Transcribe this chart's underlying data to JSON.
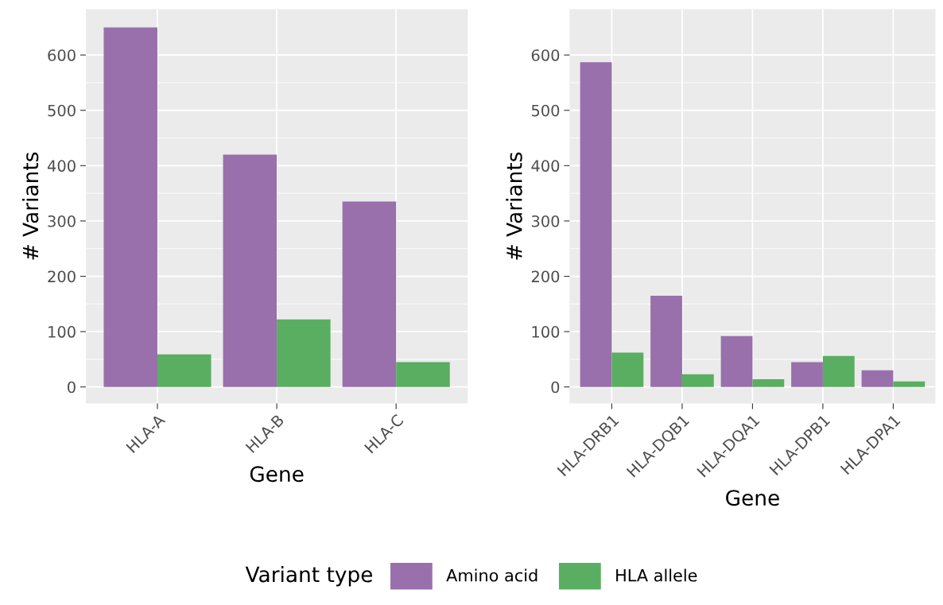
{
  "chart_data": [
    {
      "type": "bar",
      "xlabel": "Gene",
      "ylabel": "# Variants",
      "legend_title": "Variant type",
      "legend": "bottom",
      "grid": true,
      "categories": [
        "HLA-A",
        "HLA-B",
        "HLA-C"
      ],
      "series": [
        {
          "name": "Amino acid",
          "color": "#9970ab",
          "values": [
            650,
            420,
            335
          ]
        },
        {
          "name": "HLA allele",
          "color": "#5aae61",
          "values": [
            59,
            122,
            45
          ]
        }
      ],
      "ylim": [
        -30,
        683
      ],
      "yticks": [
        0,
        100,
        200,
        300,
        400,
        500,
        600
      ]
    },
    {
      "type": "bar",
      "xlabel": "Gene",
      "ylabel": "# Variants",
      "grid": true,
      "categories": [
        "HLA-DRB1",
        "HLA-DQB1",
        "HLA-DQA1",
        "HLA-DPB1",
        "HLA-DPA1"
      ],
      "series": [
        {
          "color": "#9970ab",
          "values": [
            587,
            165,
            92,
            45,
            30
          ]
        },
        {
          "color": "#5aae61",
          "values": [
            62,
            23,
            14,
            56,
            10
          ]
        }
      ],
      "ylim": [
        -30,
        683
      ],
      "yticks": [
        0,
        100,
        200,
        300,
        400,
        500,
        600
      ]
    }
  ]
}
